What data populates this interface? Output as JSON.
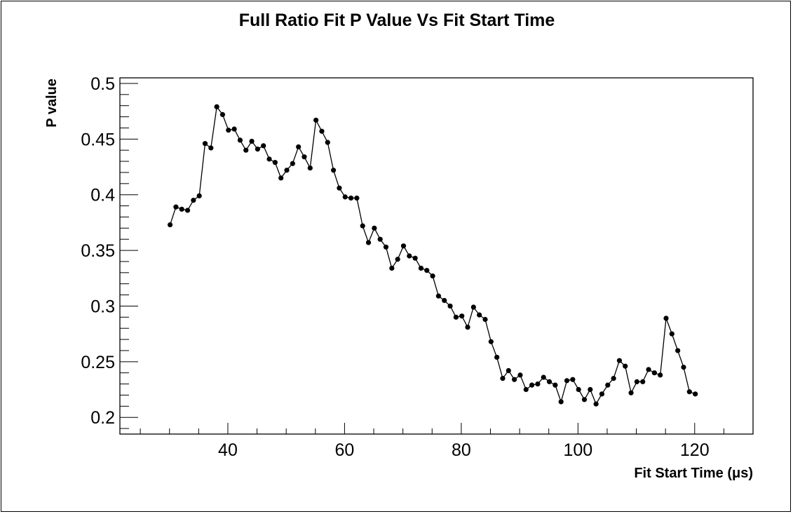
{
  "chart_data": {
    "type": "line",
    "title": "Full Ratio Fit P Value Vs Fit Start Time",
    "xlabel": "Fit Start Time (μs)",
    "ylabel": "P value",
    "xlim": [
      21.5,
      130
    ],
    "ylim": [
      0.185,
      0.505
    ],
    "xticks": [
      40,
      60,
      80,
      100,
      120
    ],
    "xtick_labels": [
      "40",
      "60",
      "80",
      "100",
      "120"
    ],
    "yticks": [
      0.2,
      0.25,
      0.3,
      0.35,
      0.4,
      0.45,
      0.5
    ],
    "ytick_labels": [
      "0.2",
      "0.25",
      "0.3",
      "0.35",
      "0.4",
      "0.45",
      "0.5"
    ],
    "grid": false,
    "marker_color": "#000000",
    "line_color": "#000000",
    "series": [
      {
        "x": [
          30.1,
          31.1,
          32.1,
          33.1,
          34.1,
          35.1,
          36.1,
          37.1,
          38.1,
          39.1,
          40.1,
          41.1,
          42.1,
          43.1,
          44.1,
          45.1,
          46.1,
          47.1,
          48.1,
          49.1,
          50.1,
          51.1,
          52.1,
          53.1,
          54.1,
          55.1,
          56.1,
          57.1,
          58.1,
          59.1,
          60.1,
          61.1,
          62.1,
          63.1,
          64.1,
          65.1,
          66.1,
          67.1,
          68.1,
          69.1,
          70.1,
          71.1,
          72.1,
          73.1,
          74.1,
          75.1,
          76.1,
          77.1,
          78.1,
          79.1,
          80.1,
          81.1,
          82.1,
          83.1,
          84.1,
          85.1,
          86.1,
          87.1,
          88.1,
          89.1,
          90.1,
          91.1,
          92.1,
          93.1,
          94.1,
          95.1,
          96.1,
          97.1,
          98.1,
          99.1,
          100.1,
          101.1,
          102.1,
          103.1,
          104.1,
          105.1,
          106.1,
          107.1,
          108.1,
          109.1,
          110.1,
          111.1,
          112.1,
          113.1,
          114.1,
          115.1,
          116.1,
          117.1,
          118.1,
          119.1,
          120.1
        ],
        "y": [
          0.373,
          0.389,
          0.387,
          0.386,
          0.395,
          0.399,
          0.446,
          0.442,
          0.479,
          0.472,
          0.458,
          0.459,
          0.449,
          0.44,
          0.448,
          0.441,
          0.444,
          0.432,
          0.429,
          0.415,
          0.422,
          0.428,
          0.443,
          0.434,
          0.424,
          0.467,
          0.457,
          0.447,
          0.422,
          0.406,
          0.398,
          0.397,
          0.397,
          0.372,
          0.357,
          0.37,
          0.36,
          0.353,
          0.334,
          0.342,
          0.354,
          0.345,
          0.343,
          0.334,
          0.332,
          0.327,
          0.309,
          0.305,
          0.3,
          0.29,
          0.291,
          0.281,
          0.299,
          0.292,
          0.288,
          0.268,
          0.254,
          0.235,
          0.242,
          0.234,
          0.238,
          0.225,
          0.229,
          0.23,
          0.236,
          0.232,
          0.229,
          0.214,
          0.233,
          0.234,
          0.225,
          0.216,
          0.225,
          0.212,
          0.221,
          0.229,
          0.235,
          0.251,
          0.246,
          0.222,
          0.232,
          0.232,
          0.243,
          0.24,
          0.238,
          0.289,
          0.275,
          0.26,
          0.245,
          0.223,
          0.221
        ]
      }
    ]
  }
}
